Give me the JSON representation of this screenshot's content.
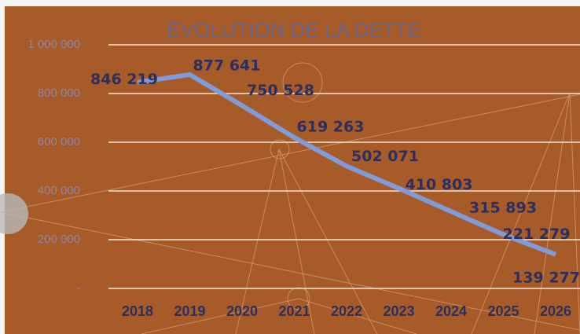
{
  "chart_data": {
    "type": "line",
    "title": "ÉVOLUTION DE LA DETTE",
    "categories": [
      "2018",
      "2019",
      "2020",
      "2021",
      "2022",
      "2023",
      "2024",
      "2025",
      "2026"
    ],
    "series": [
      {
        "color": "#7f9cd8",
        "values": [
          846219,
          877641,
          750528,
          619263,
          502071,
          410803,
          315893,
          221279,
          139277
        ],
        "value_labels": [
          "846 219",
          "877 641",
          "750 528",
          "619 263",
          "502 071",
          "410 803",
          "315 893",
          "221 279",
          "139 277"
        ]
      }
    ],
    "ylim": [
      0,
      1000000
    ],
    "yticks": [
      {
        "value": 0,
        "label": "-"
      },
      {
        "value": 200000,
        "label": "200 000"
      },
      {
        "value": 400000,
        "label": "400 000"
      },
      {
        "value": 600000,
        "label": "600 000"
      },
      {
        "value": 800000,
        "label": "800 000"
      },
      {
        "value": 1000000,
        "label": "1 000 000"
      }
    ],
    "grid": true
  }
}
